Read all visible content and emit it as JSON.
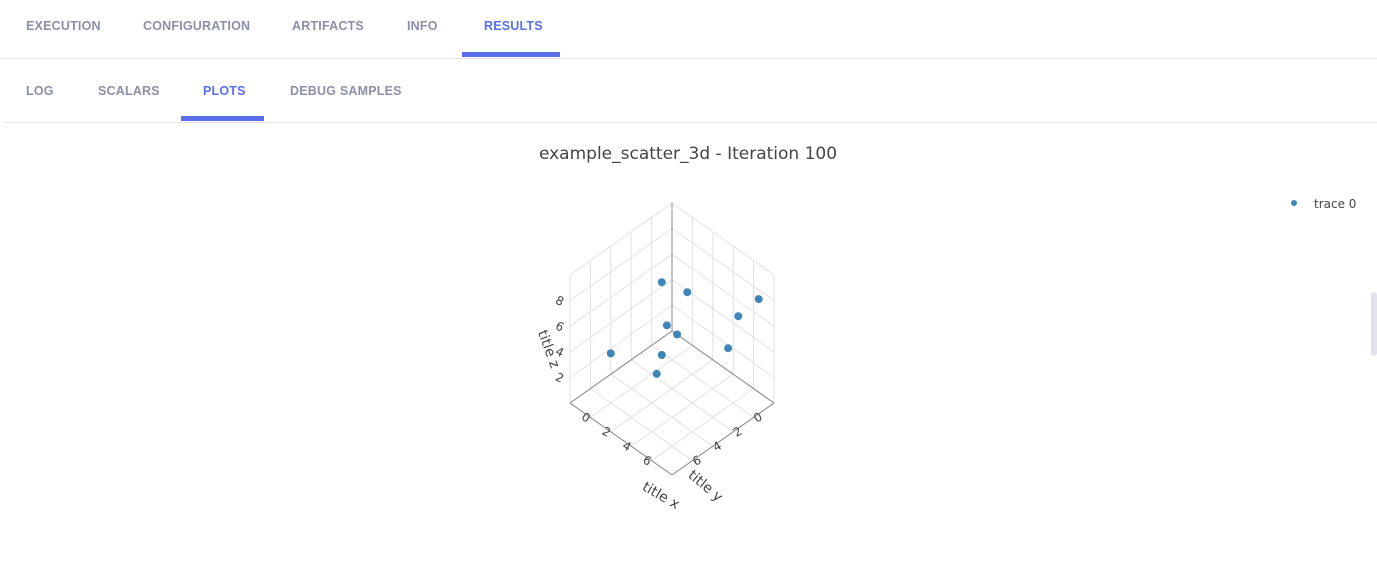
{
  "main_tabs": [
    {
      "label": "EXECUTION"
    },
    {
      "label": "CONFIGURATION"
    },
    {
      "label": "ARTIFACTS"
    },
    {
      "label": "INFO"
    },
    {
      "label": "RESULTS"
    }
  ],
  "sub_tabs": [
    {
      "label": "LOG"
    },
    {
      "label": "SCALARS"
    },
    {
      "label": "PLOTS"
    },
    {
      "label": "DEBUG SAMPLES"
    }
  ],
  "active_main_tab": "RESULTS",
  "active_sub_tab": "PLOTS",
  "colors": {
    "accent": "#5a6ef0",
    "inactive_tab": "#8c8fa8",
    "marker": "#3f86b8"
  },
  "chart_data": {
    "type": "scatter",
    "title": "example_scatter_3d - Iteration 100",
    "legend": {
      "entries": [
        "trace 0"
      ],
      "placement": "top-right"
    },
    "axis_labels": {
      "x": "title x",
      "y": "title y",
      "z": "title z"
    },
    "axis_ticks": {
      "x": [
        "0",
        "2",
        "4",
        "6"
      ],
      "y": [
        "0",
        "2",
        "4",
        "6"
      ],
      "z": [
        "2",
        "4",
        "6",
        "8"
      ]
    },
    "grid": true,
    "series": [
      {
        "name": "trace 0",
        "points": [
          {
            "x": 9.5,
            "y": 1.0,
            "z": 8.4
          },
          {
            "x": 8.0,
            "y": 1.5,
            "z": 6.5
          },
          {
            "x": 7.5,
            "y": 2.0,
            "z": 4.0
          },
          {
            "x": 7.0,
            "y": 7.5,
            "z": 8.6
          },
          {
            "x": 7.6,
            "y": 7.1,
            "z": 8.0
          },
          {
            "x": 6.5,
            "y": 5.0,
            "z": 9.5
          },
          {
            "x": 1.0,
            "y": 2.0,
            "z": 5.5
          },
          {
            "x": 2.5,
            "y": 3.5,
            "z": 1.5
          },
          {
            "x": 4.0,
            "y": 5.5,
            "z": 2.0
          },
          {
            "x": 3.0,
            "y": 9.0,
            "z": 5.0
          }
        ]
      }
    ]
  }
}
